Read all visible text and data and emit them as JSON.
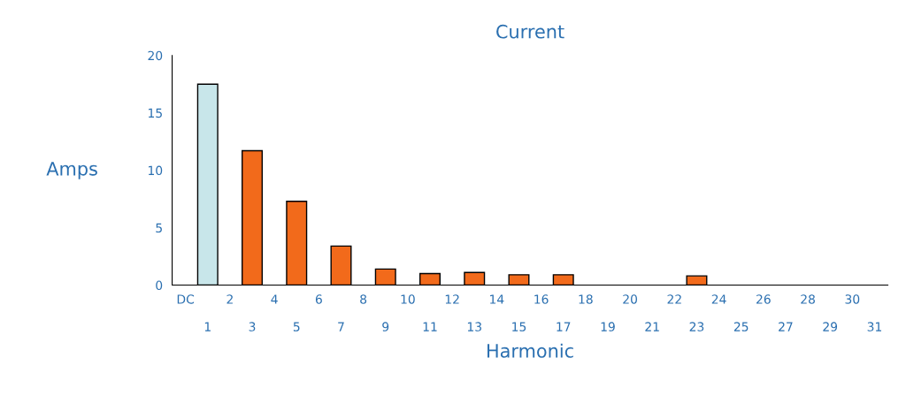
{
  "chart_data": {
    "type": "bar",
    "title": "Current",
    "xlabel": "Harmonic",
    "ylabel": "Amps",
    "categories": [
      "DC",
      "1",
      "2",
      "3",
      "4",
      "5",
      "6",
      "7",
      "8",
      "9",
      "10",
      "11",
      "12",
      "13",
      "14",
      "15",
      "16",
      "17",
      "18",
      "19",
      "20",
      "21",
      "22",
      "23",
      "24",
      "25",
      "26",
      "27",
      "28",
      "29",
      "30",
      "31"
    ],
    "values": [
      0,
      17.5,
      0,
      11.7,
      0,
      7.3,
      0,
      3.4,
      0,
      1.4,
      0,
      1.0,
      0,
      1.1,
      0,
      0.9,
      0,
      0.9,
      0,
      0,
      0,
      0,
      0,
      0.8,
      0,
      0,
      0,
      0,
      0,
      0,
      0,
      0
    ],
    "colors": [
      "#f26a1b",
      "#c8e6ea",
      "#f26a1b",
      "#f26a1b",
      "#f26a1b",
      "#f26a1b",
      "#f26a1b",
      "#f26a1b",
      "#f26a1b",
      "#f26a1b",
      "#f26a1b",
      "#f26a1b",
      "#f26a1b",
      "#f26a1b",
      "#f26a1b",
      "#f26a1b",
      "#f26a1b",
      "#f26a1b",
      "#f26a1b",
      "#f26a1b",
      "#f26a1b",
      "#f26a1b",
      "#f26a1b",
      "#f26a1b",
      "#f26a1b",
      "#f26a1b",
      "#f26a1b",
      "#f26a1b",
      "#f26a1b",
      "#f26a1b",
      "#f26a1b",
      "#f26a1b"
    ],
    "ylim": [
      0,
      20
    ],
    "yticks": [
      0,
      5,
      10,
      15,
      20
    ],
    "grid": false
  }
}
